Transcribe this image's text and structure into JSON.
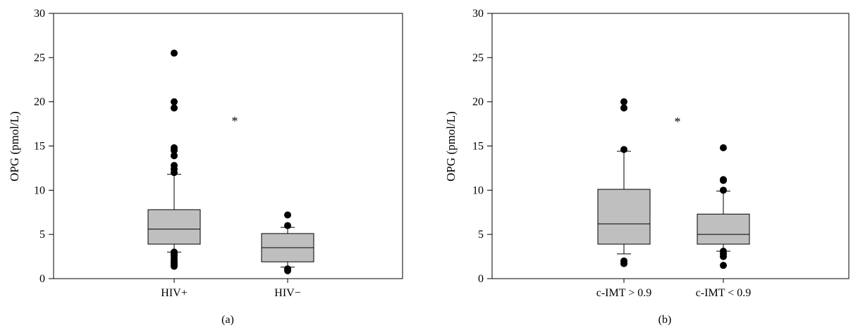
{
  "chart_data": [
    {
      "type": "box",
      "panel_label": "(a)",
      "ylabel": "OPG (pmol/L)",
      "ylim": [
        0,
        30
      ],
      "yticks": [
        "0",
        "5",
        "10",
        "15",
        "20",
        "25",
        "30"
      ],
      "categories": [
        "HIV+",
        "HIV−"
      ],
      "annotation": "*",
      "box_color": "#bfbfbf",
      "boxes": [
        {
          "category": "HIV+",
          "whisker_low": 3.0,
          "q1": 3.9,
          "median": 5.6,
          "q3": 7.8,
          "whisker_high": 11.8,
          "outliers": [
            1.4,
            1.6,
            1.8,
            2.0,
            2.3,
            2.6,
            2.8,
            3.0,
            12.0,
            12.4,
            12.8,
            13.9,
            14.5,
            14.8,
            19.3,
            20.0,
            25.5
          ]
        },
        {
          "category": "HIV−",
          "whisker_low": 1.3,
          "q1": 1.9,
          "median": 3.5,
          "q3": 5.1,
          "whisker_high": 5.8,
          "outliers": [
            0.9,
            1.1,
            6.0,
            7.2
          ]
        }
      ]
    },
    {
      "type": "box",
      "panel_label": "(b)",
      "ylabel": "OPG (pmol/L)",
      "ylim": [
        0,
        30
      ],
      "yticks": [
        "0",
        "5",
        "10",
        "15",
        "20",
        "25",
        "30"
      ],
      "categories": [
        "c-IMT > 0.9",
        "c-IMT < 0.9"
      ],
      "annotation": "*",
      "box_color": "#bfbfbf",
      "boxes": [
        {
          "category": "c-IMT > 0.9",
          "whisker_low": 2.8,
          "q1": 3.9,
          "median": 6.2,
          "q3": 10.1,
          "whisker_high": 14.4,
          "outliers": [
            1.7,
            2.0,
            14.6,
            19.3,
            20.0
          ]
        },
        {
          "category": "c-IMT < 0.9",
          "whisker_low": 3.1,
          "q1": 3.9,
          "median": 5.0,
          "q3": 7.3,
          "whisker_high": 9.9,
          "outliers": [
            1.5,
            2.5,
            2.8,
            3.1,
            10.0,
            11.1,
            11.2,
            14.8
          ]
        }
      ]
    }
  ]
}
